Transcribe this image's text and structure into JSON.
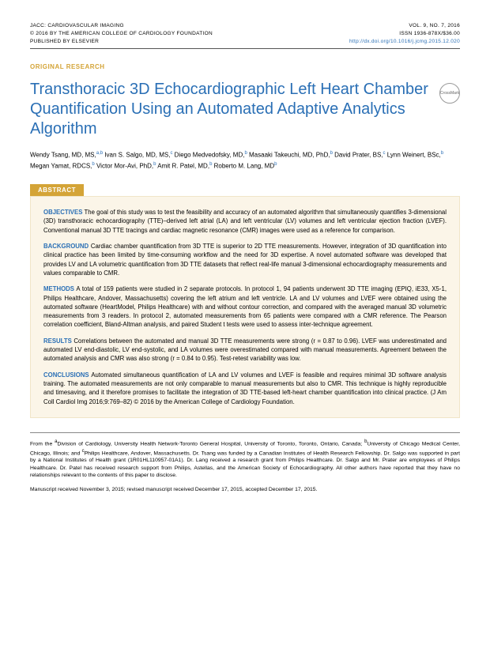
{
  "header": {
    "left1": "JACC: CARDIOVASCULAR IMAGING",
    "left2": "© 2016 BY THE AMERICAN COLLEGE OF CARDIOLOGY FOUNDATION",
    "left3": "PUBLISHED BY ELSEVIER",
    "right1": "VOL. 9, NO. 7, 2016",
    "right2": "ISSN 1936-878X/$36.00",
    "right3": "http://dx.doi.org/10.1016/j.jcmg.2015.12.020"
  },
  "section": "ORIGINAL RESEARCH",
  "title": "Transthoracic 3D Echocardiographic Left Heart Chamber Quantification Using an Automated Adaptive Analytics Algorithm",
  "crossmark": "CrossMark",
  "authors_html": "Wendy Tsang, MD, MS,<span class='sup'>a,b</span> Ivan S. Salgo, MD, MS,<span class='sup'>c</span> Diego Medvedofsky, MD,<span class='sup'>b</span> Masaaki Takeuchi, MD, PhD,<span class='sup'>b</span> David Prater, BS,<span class='sup'>c</span> Lynn Weinert, BSc,<span class='sup'>b</span> Megan Yamat, RDCS,<span class='sup'>b</span> Victor Mor-Avi, PhD,<span class='sup'>b</span> Amit R. Patel, MD,<span class='sup'>b</span> Roberto M. Lang, MD<span class='sup'>b</span>",
  "abstract_label": "ABSTRACT",
  "abstract": {
    "objectives": "The goal of this study was to test the feasibility and accuracy of an automated algorithm that simultaneously quantifies 3-dimensional (3D) transthoracic echocardiography (TTE)–derived left atrial (LA) and left ventricular (LV) volumes and left ventricular ejection fraction (LVEF). Conventional manual 3D TTE tracings and cardiac magnetic resonance (CMR) images were used as a reference for comparison.",
    "background": "Cardiac chamber quantification from 3D TTE is superior to 2D TTE measurements. However, integration of 3D quantification into clinical practice has been limited by time-consuming workflow and the need for 3D expertise. A novel automated software was developed that provides LV and LA volumetric quantification from 3D TTE datasets that reflect real-life manual 3-dimensional echocardiography measurements and values comparable to CMR.",
    "methods": "A total of 159 patients were studied in 2 separate protocols. In protocol 1, 94 patients underwent 3D TTE imaging (EPIQ, iE33, X5-1, Philips Healthcare, Andover, Massachusetts) covering the left atrium and left ventricle. LA and LV volumes and LVEF were obtained using the automated software (HeartModel, Philips Healthcare) with and without contour correction, and compared with the averaged manual 3D volumetric measurements from 3 readers. In protocol 2, automated measurements from 65 patients were compared with a CMR reference. The Pearson correlation coefficient, Bland-Altman analysis, and paired Student t tests were used to assess inter-technique agreement.",
    "results": "Correlations between the automated and manual 3D TTE measurements were strong (r = 0.87 to 0.96). LVEF was underestimated and automated LV end-diastolic, LV end-systolic, and LA volumes were overestimated compared with manual measurements. Agreement between the automated analysis and CMR was also strong (r = 0.84 to 0.95). Test-retest variability was low.",
    "conclusions": "Automated simultaneous quantification of LA and LV volumes and LVEF is feasible and requires minimal 3D software analysis training. The automated measurements are not only comparable to manual measurements but also to CMR. This technique is highly reproducible and timesaving, and it therefore promises to facilitate the integration of 3D TTE-based left-heart chamber quantification into clinical practice.  (J Am Coll Cardiol Img 2016;9:769–82) © 2016 by the American College of Cardiology Foundation."
  },
  "heads": {
    "objectives": "OBJECTIVES",
    "background": "BACKGROUND",
    "methods": "METHODS",
    "results": "RESULTS",
    "conclusions": "CONCLUSIONS"
  },
  "footnote1": "From the <span class='sup'>a</span>Division of Cardiology, University Health Network-Toronto General Hospital, University of Toronto, Toronto, Ontario, Canada; <span class='sup'>b</span>University of Chicago Medical Center, Chicago, Illinois; and <span class='sup'>c</span>Philips Healthcare, Andover, Massachusetts. Dr. Tsang was funded by a Canadian Institutes of Health Research Fellowship. Dr. Salgo was supported in part by a National Institutes of Health grant (1R01HL110957-01A1). Dr. Lang received a research grant from Philips Healthcare. Dr. Salgo and Mr. Prater are employees of Philips Healthcare. Dr. Patel has received research support from Philips, Astellas, and the American Society of Echocardiography. All other authors have reported that they have no relationships relevant to the contents of this paper to disclose.",
  "footnote2": "Manuscript received November 3, 2015; revised manuscript received December 17, 2015, accepted December 17, 2015."
}
